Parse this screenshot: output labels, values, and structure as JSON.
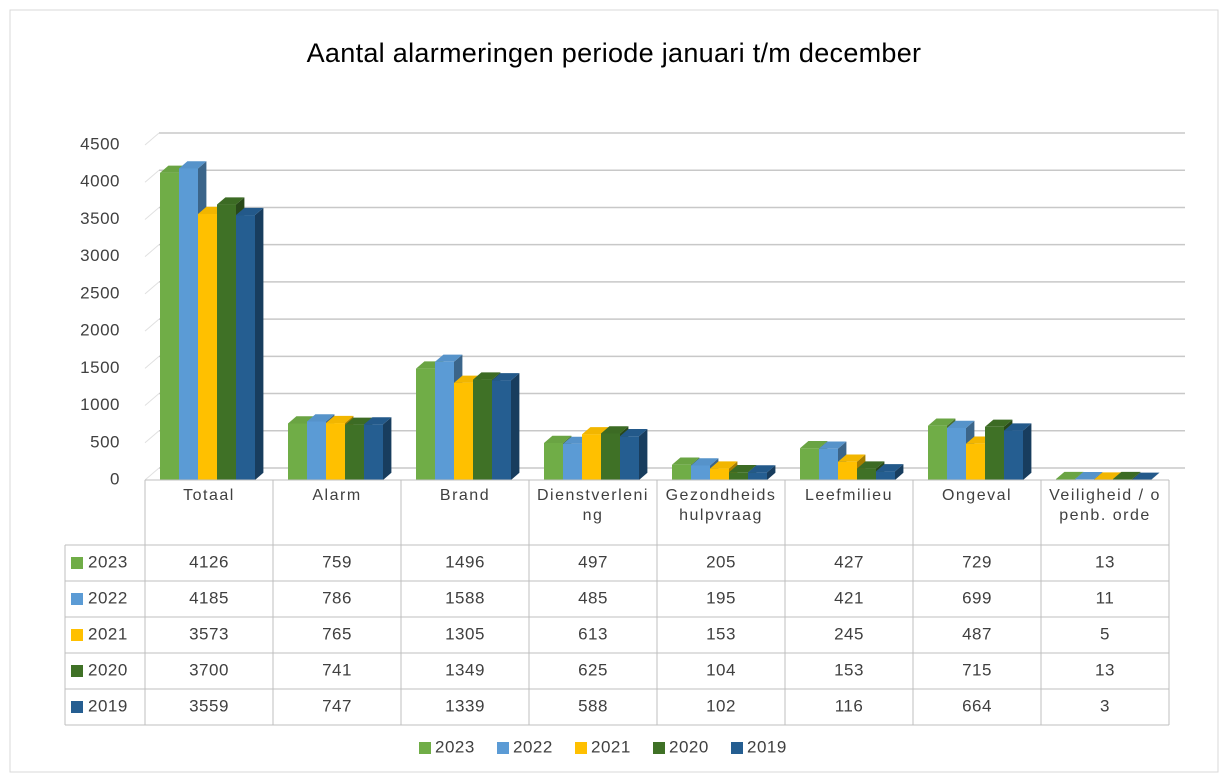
{
  "chart_data": {
    "type": "bar",
    "title": "Aantal alarmeringen periode januari t/m december",
    "categories": [
      "Totaal",
      "Alarm",
      "Brand",
      "Dienstverlening",
      "Gezondheidshulpvraag",
      "Leefmilieu",
      "Ongeval",
      "Veiligheid / openb. orde"
    ],
    "series": [
      {
        "name": "2023",
        "color": "#70ad47",
        "values": [
          4126,
          759,
          1496,
          497,
          205,
          427,
          729,
          13
        ]
      },
      {
        "name": "2022",
        "color": "#5b9bd5",
        "values": [
          4185,
          786,
          1588,
          485,
          195,
          421,
          699,
          11
        ]
      },
      {
        "name": "2021",
        "color": "#ffc000",
        "values": [
          3573,
          765,
          1305,
          613,
          153,
          245,
          487,
          5
        ]
      },
      {
        "name": "2020",
        "color": "#3f7126",
        "values": [
          3700,
          741,
          1349,
          625,
          104,
          153,
          715,
          13
        ]
      },
      {
        "name": "2019",
        "color": "#255e91",
        "values": [
          3559,
          747,
          1339,
          588,
          102,
          116,
          664,
          3
        ]
      }
    ],
    "ylim": [
      0,
      4500
    ],
    "yticks": [
      0,
      500,
      1000,
      1500,
      2000,
      2500,
      3000,
      3500,
      4000,
      4500
    ],
    "grid": true,
    "legend": "bottom"
  }
}
